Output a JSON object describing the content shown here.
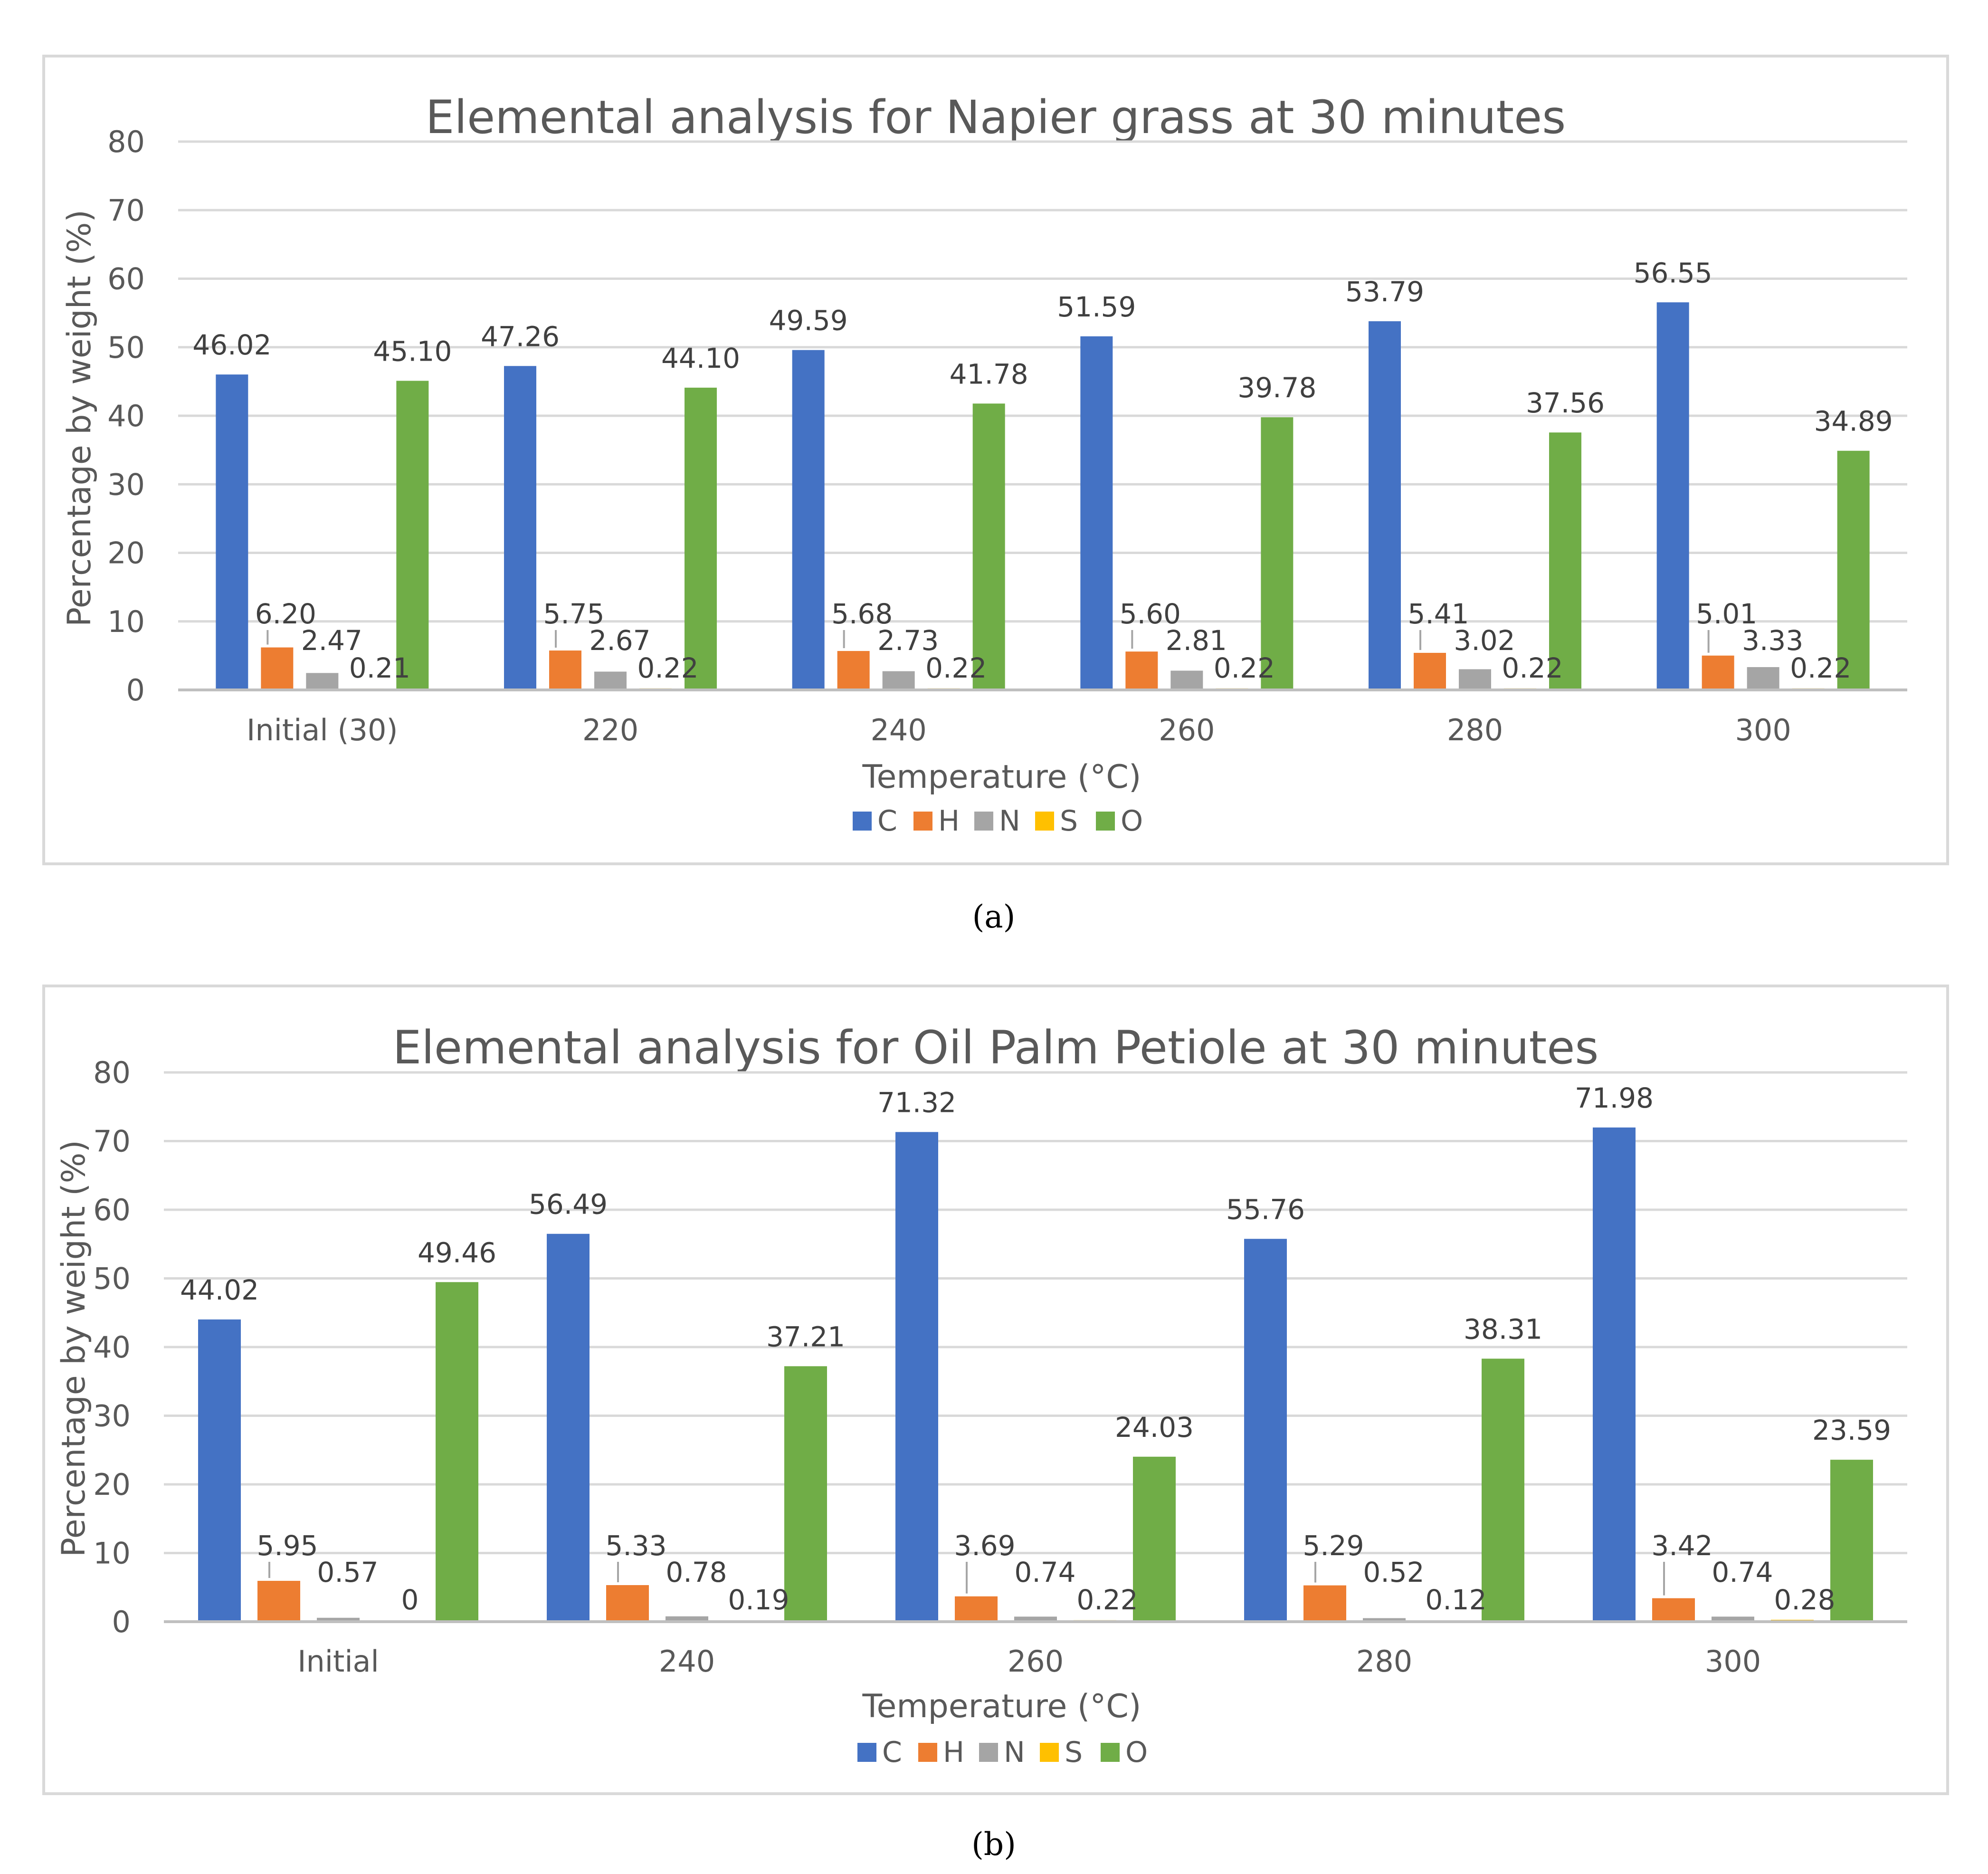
{
  "colors": {
    "C": "#4472C4",
    "H": "#ED7D31",
    "N": "#A5A5A5",
    "S": "#FFC000",
    "O": "#70AD47"
  },
  "chart_data": [
    {
      "type": "bar",
      "title": "Elemental analysis for Napier grass at 30 minutes",
      "xlabel": "Temperature (°C)",
      "ylabel": "Percentage by weight (%)",
      "ylim": [
        0,
        80
      ],
      "yticks": [
        0,
        10,
        20,
        30,
        40,
        50,
        60,
        70,
        80
      ],
      "categories": [
        "Initial (30)",
        "220",
        "240",
        "260",
        "280",
        "300"
      ],
      "series": [
        {
          "name": "C",
          "values": [
            46.02,
            47.26,
            49.59,
            51.59,
            53.79,
            56.55
          ],
          "labels": [
            "46.02",
            "47.26",
            "49.59",
            "51.59",
            "53.79",
            "56.55"
          ]
        },
        {
          "name": "H",
          "values": [
            6.2,
            5.75,
            5.68,
            5.6,
            5.41,
            5.01
          ],
          "labels": [
            "6.20",
            "5.75",
            "5.68",
            "5.60",
            "5.41",
            "5.01"
          ]
        },
        {
          "name": "N",
          "values": [
            2.47,
            2.67,
            2.73,
            2.81,
            3.02,
            3.33
          ],
          "labels": [
            "2.47",
            "2.67",
            "2.73",
            "2.81",
            "3.02",
            "3.33"
          ]
        },
        {
          "name": "S",
          "values": [
            0.21,
            0.22,
            0.22,
            0.22,
            0.22,
            0.22
          ],
          "labels": [
            "0.21",
            "0.22",
            "0.22",
            "0.22",
            "0.22",
            "0.22"
          ]
        },
        {
          "name": "O",
          "values": [
            45.1,
            44.1,
            41.78,
            39.78,
            37.56,
            34.89
          ],
          "labels": [
            "45.10",
            "44.10",
            "41.78",
            "39.78",
            "37.56",
            "34.89"
          ]
        }
      ],
      "legend": [
        "C",
        "H",
        "N",
        "S",
        "O"
      ],
      "legend_position": "bottom",
      "grid": true,
      "caption": "(a)"
    },
    {
      "type": "bar",
      "title": "Elemental analysis for Oil Palm Petiole at 30 minutes",
      "xlabel": "Temperature (°C)",
      "ylabel": "Percentage by weight (%)",
      "ylim": [
        0,
        80
      ],
      "yticks": [
        0,
        10,
        20,
        30,
        40,
        50,
        60,
        70,
        80
      ],
      "categories": [
        "Initial",
        "240",
        "260",
        "280",
        "300"
      ],
      "series": [
        {
          "name": "C",
          "values": [
            44.02,
            56.49,
            71.32,
            55.76,
            71.98
          ],
          "labels": [
            "44.02",
            "56.49",
            "71.32",
            "55.76",
            "71.98"
          ]
        },
        {
          "name": "H",
          "values": [
            5.95,
            5.33,
            3.69,
            5.29,
            3.42
          ],
          "labels": [
            "5.95",
            "5.33",
            "3.69",
            "5.29",
            "3.42"
          ]
        },
        {
          "name": "N",
          "values": [
            0.57,
            0.78,
            0.74,
            0.52,
            0.74
          ],
          "labels": [
            "0.57",
            "0.78",
            "0.74",
            "0.52",
            "0.74"
          ]
        },
        {
          "name": "S",
          "values": [
            0,
            0.19,
            0.22,
            0.12,
            0.28
          ],
          "labels": [
            "0",
            "0.19",
            "0.22",
            "0.12",
            "0.28"
          ]
        },
        {
          "name": "O",
          "values": [
            49.46,
            37.21,
            24.03,
            38.31,
            23.59
          ],
          "labels": [
            "49.46",
            "37.21",
            "24.03",
            "38.31",
            "23.59"
          ]
        }
      ],
      "legend": [
        "C",
        "H",
        "N",
        "S",
        "O"
      ],
      "legend_position": "bottom",
      "grid": true,
      "caption": "(b)"
    }
  ]
}
